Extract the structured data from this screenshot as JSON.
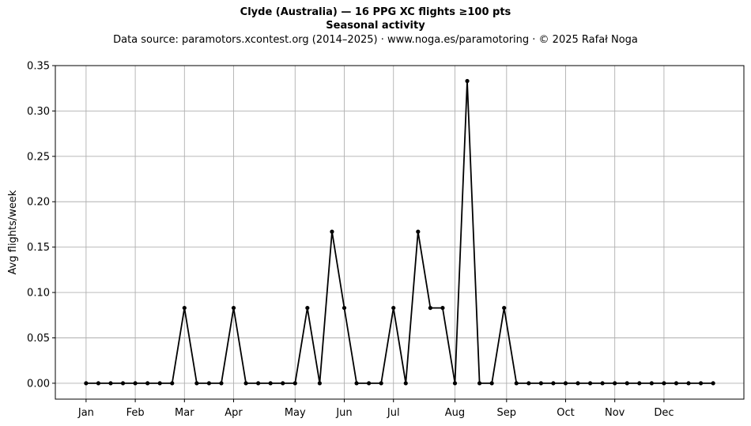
{
  "chart_data": {
    "type": "line",
    "title": "Clyde (Australia)  —  16 PPG XC flights ≥100 pts",
    "subtitle": "Seasonal activity",
    "source_note": "Data source: paramotors.xcontest.org (2014–2025)  ·  www.noga.es/paramotoring  ·  © 2025 Rafał Noga",
    "xlabel": "",
    "ylabel": "Avg flights/week",
    "ylim": [
      -0.0175,
      0.35
    ],
    "xlim": [
      -1.5,
      54.5
    ],
    "yticks": [
      0.0,
      0.05,
      0.1,
      0.15,
      0.2,
      0.25,
      0.3,
      0.35
    ],
    "ytick_labels": [
      "0.00",
      "0.05",
      "0.10",
      "0.15",
      "0.20",
      "0.25",
      "0.30",
      "0.35"
    ],
    "xticks": [
      {
        "label": "Jan",
        "x": 1.0
      },
      {
        "label": "Feb",
        "x": 5.0
      },
      {
        "label": "Mar",
        "x": 9.0
      },
      {
        "label": "Apr",
        "x": 13.0
      },
      {
        "label": "May",
        "x": 18.0
      },
      {
        "label": "Jun",
        "x": 22.0
      },
      {
        "label": "Jul",
        "x": 26.0
      },
      {
        "label": "Aug",
        "x": 31.0
      },
      {
        "label": "Sep",
        "x": 35.2
      },
      {
        "label": "Oct",
        "x": 40.0
      },
      {
        "label": "Nov",
        "x": 44.0
      },
      {
        "label": "Dec",
        "x": 48.0
      }
    ],
    "grid": true,
    "series": [
      {
        "color": "#000000",
        "marker": "dot",
        "x": [
          1,
          2,
          3,
          4,
          5,
          6,
          7,
          8,
          9,
          10,
          11,
          12,
          13,
          14,
          15,
          16,
          17,
          18,
          19,
          20,
          21,
          22,
          23,
          24,
          25,
          26,
          27,
          28,
          29,
          30,
          31,
          32,
          33,
          34,
          35,
          36,
          37,
          38,
          39,
          40,
          41,
          42,
          43,
          44,
          45,
          46,
          47,
          48,
          49,
          50,
          51,
          52
        ],
        "values": [
          0,
          0,
          0,
          0,
          0,
          0,
          0,
          0,
          0.083,
          0,
          0,
          0,
          0.083,
          0,
          0,
          0,
          0,
          0,
          0.083,
          0,
          0.167,
          0.083,
          0,
          0,
          0,
          0.083,
          0,
          0.167,
          0.083,
          0.083,
          0,
          0.333,
          0,
          0,
          0.083,
          0,
          0,
          0,
          0,
          0,
          0,
          0,
          0,
          0,
          0,
          0,
          0,
          0,
          0,
          0,
          0,
          0
        ]
      }
    ]
  }
}
